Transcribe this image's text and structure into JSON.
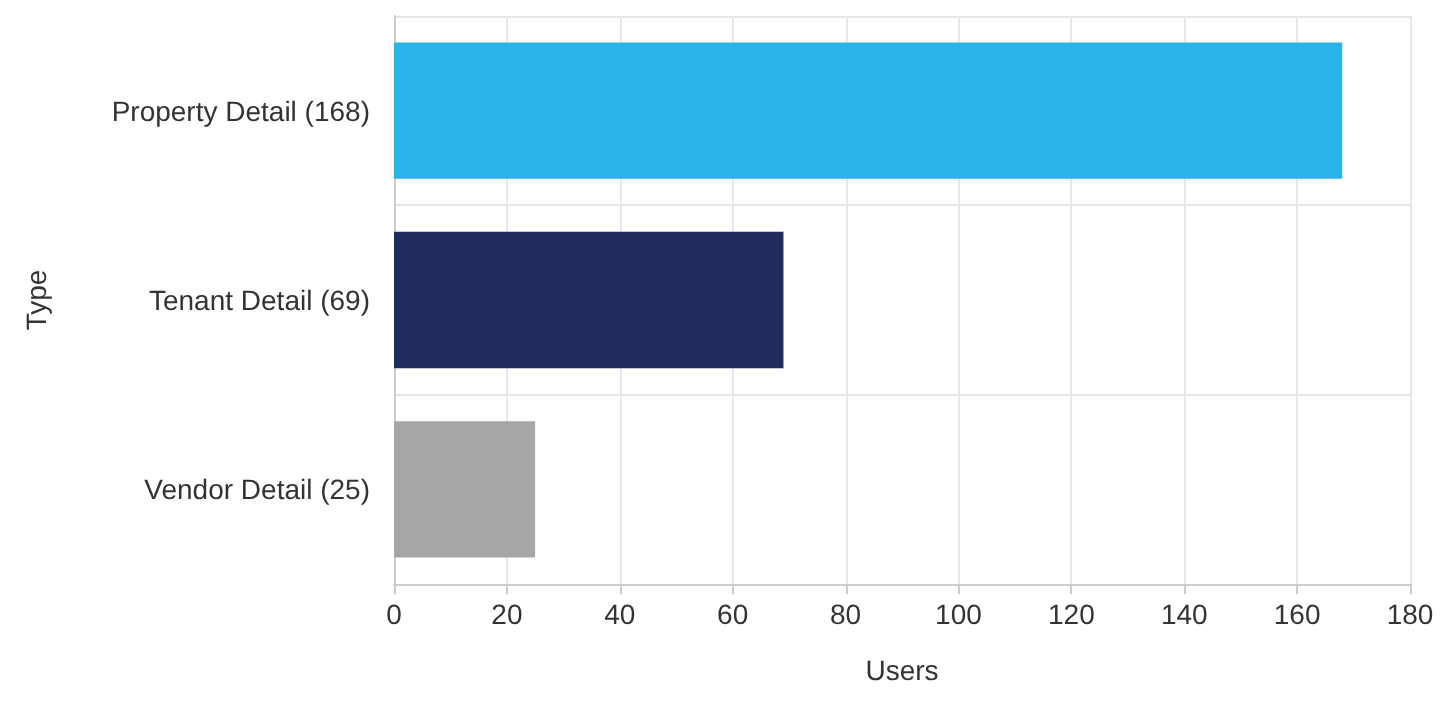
{
  "chart_data": {
    "type": "bar",
    "orientation": "horizontal",
    "xlabel": "Users",
    "ylabel": "Type",
    "categories": [
      "Property Detail (168)",
      "Tenant Detail (69)",
      "Vendor Detail (25)"
    ],
    "values": [
      168,
      69,
      25
    ],
    "colors": [
      "#29b3e8",
      "#1f2b5c",
      "#a6a6a4"
    ],
    "xlim": [
      0,
      180
    ],
    "xticks": [
      0,
      20,
      40,
      60,
      80,
      100,
      120,
      140,
      160,
      180
    ],
    "grid": true
  }
}
